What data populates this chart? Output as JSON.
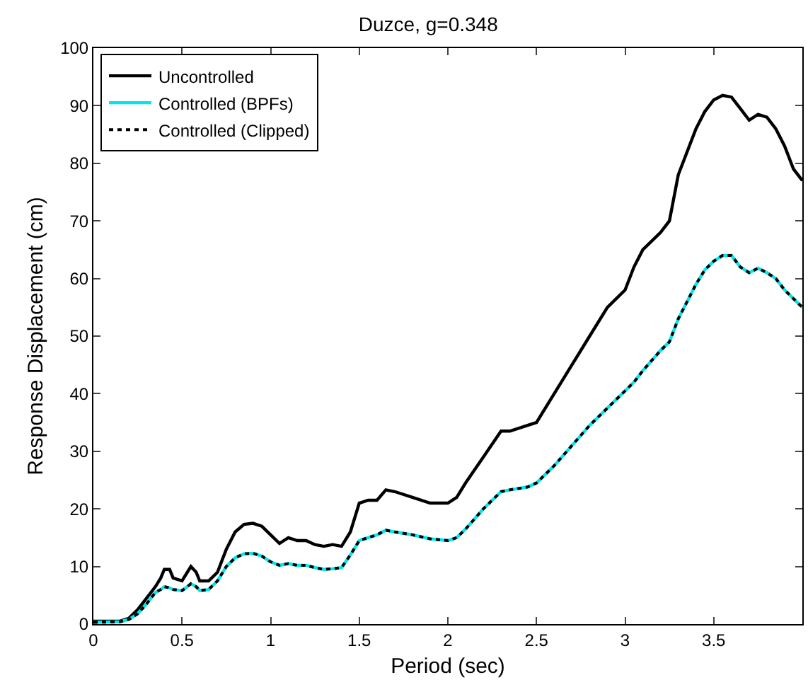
{
  "chart_data": {
    "type": "line",
    "title": "Duzce, g=0.348",
    "xlabel": "Period (sec)",
    "ylabel": "Response Displacement (cm)",
    "x": [
      0,
      0.15,
      0.2,
      0.25,
      0.3,
      0.35,
      0.38,
      0.4,
      0.43,
      0.45,
      0.5,
      0.53,
      0.55,
      0.58,
      0.6,
      0.65,
      0.7,
      0.75,
      0.8,
      0.85,
      0.9,
      0.95,
      1.0,
      1.05,
      1.1,
      1.15,
      1.2,
      1.25,
      1.3,
      1.35,
      1.4,
      1.45,
      1.5,
      1.55,
      1.6,
      1.65,
      1.7,
      1.8,
      1.9,
      2.0,
      2.05,
      2.1,
      2.2,
      2.3,
      2.35,
      2.45,
      2.5,
      2.6,
      2.7,
      2.8,
      2.9,
      3.0,
      3.05,
      3.1,
      3.2,
      3.25,
      3.3,
      3.4,
      3.45,
      3.5,
      3.55,
      3.6,
      3.65,
      3.7,
      3.75,
      3.8,
      3.85,
      3.9,
      3.95,
      4.0
    ],
    "series": [
      {
        "name": "Uncontrolled",
        "color": "#000000",
        "line_style": "solid",
        "values": [
          0.5,
          0.5,
          1,
          2.5,
          4.5,
          6.5,
          8,
          9.5,
          9.5,
          8,
          7.5,
          9,
          10,
          9,
          7.5,
          7.5,
          9,
          13,
          16,
          17.3,
          17.5,
          17,
          15.5,
          14,
          15,
          14.5,
          14.5,
          13.8,
          13.5,
          13.8,
          13.5,
          16,
          21,
          21.5,
          21.5,
          23.3,
          23,
          22,
          21,
          21,
          22,
          24.5,
          29,
          33.5,
          33.5,
          34.5,
          35,
          40,
          45,
          50,
          55,
          58,
          62,
          65,
          68,
          70,
          78,
          86,
          89,
          91,
          91.8,
          91.5,
          89.5,
          87.5,
          88.5,
          88,
          86,
          83,
          79,
          77
        ]
      },
      {
        "name": "Controlled (BPFs)",
        "color": "#00e5ee",
        "line_style": "solid",
        "values": [
          0.3,
          0.4,
          0.8,
          1.8,
          3.5,
          5.5,
          6,
          6.5,
          6.3,
          6,
          5.8,
          6.5,
          7,
          6.5,
          5.8,
          6,
          7.5,
          10,
          11.5,
          12.2,
          12.3,
          11.8,
          10.8,
          10.2,
          10.5,
          10.2,
          10.2,
          9.8,
          9.5,
          9.6,
          9.8,
          12,
          14.5,
          15,
          15.5,
          16.3,
          16,
          15.5,
          14.8,
          14.5,
          15,
          16.5,
          20,
          23,
          23.3,
          23.8,
          24.5,
          27.5,
          31,
          34.5,
          37.5,
          40.5,
          42,
          44,
          47.5,
          49,
          53,
          59,
          61.5,
          63,
          64,
          64,
          62,
          61,
          61.8,
          61,
          60,
          58,
          56.5,
          55
        ]
      },
      {
        "name": "Controlled (Clipped)",
        "color": "#000000",
        "line_style": "dotted",
        "values": [
          0.3,
          0.4,
          0.8,
          1.8,
          3.5,
          5.5,
          6,
          6.5,
          6.3,
          6,
          5.8,
          6.5,
          7,
          6.5,
          5.8,
          6,
          7.5,
          10,
          11.5,
          12.2,
          12.3,
          11.8,
          10.8,
          10.2,
          10.5,
          10.2,
          10.2,
          9.8,
          9.5,
          9.6,
          9.8,
          12,
          14.5,
          15,
          15.5,
          16.3,
          16,
          15.5,
          14.8,
          14.5,
          15,
          16.5,
          20,
          23,
          23.3,
          23.8,
          24.5,
          27.5,
          31,
          34.5,
          37.5,
          40.5,
          42,
          44,
          47.5,
          49,
          53,
          59,
          61.5,
          63,
          64,
          64,
          62,
          61,
          61.8,
          61,
          60,
          58,
          56.5,
          55
        ]
      }
    ],
    "xlim": [
      0,
      4
    ],
    "xticks": [
      0,
      0.5,
      1,
      1.5,
      2,
      2.5,
      3,
      3.5
    ],
    "ylim": [
      0,
      100
    ],
    "yticks": [
      0,
      10,
      20,
      30,
      40,
      50,
      60,
      70,
      80,
      90,
      100
    ],
    "grid": false,
    "legend": "top left",
    "marker": "none"
  }
}
